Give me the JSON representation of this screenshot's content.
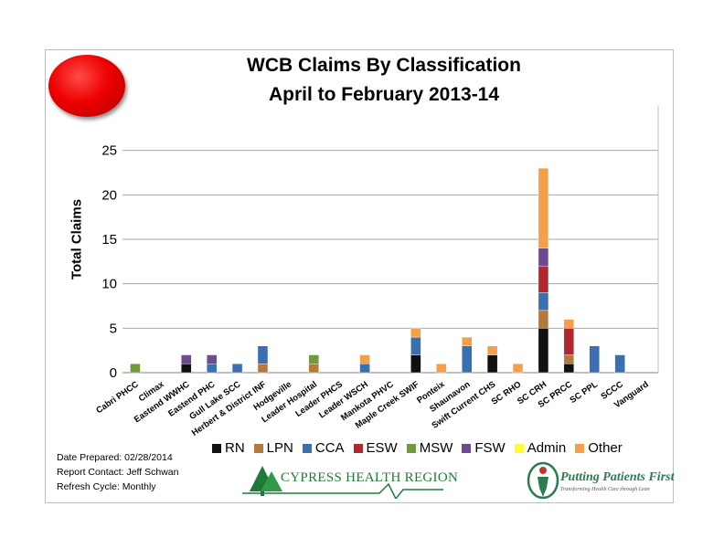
{
  "header": {
    "title_line1": "WCB Claims By Classification",
    "title_line2": "April to February  2013-14"
  },
  "footer": {
    "date_prepared": "Date Prepared:  02/28/2014",
    "report_contact": "Report Contact: Jeff Schwan",
    "refresh_cycle": "Refresh Cycle: Monthly"
  },
  "logos": {
    "left_text": "CYPRESS HEALTH REGION",
    "right_text": "Putting Patients First",
    "right_subtext": "Transforming Health Care through Lean"
  },
  "colors": {
    "RN": "#111111",
    "LPN": "#b57a3a",
    "CCA": "#3a6fb0",
    "ESW": "#b0292e",
    "MSW": "#6f9a3a",
    "FSW": "#6e4a90",
    "Admin": "#ffff33",
    "Other": "#f4a048"
  },
  "chart_data": {
    "type": "bar",
    "stacked": true,
    "title": "WCB Claims By Classification\nApril to February  2013-14",
    "xlabel": "",
    "ylabel": "Total Claims",
    "ylim": [
      0,
      30
    ],
    "yticks": [
      0,
      5,
      10,
      15,
      20,
      25
    ],
    "grid": true,
    "legend_position": "bottom",
    "categories": [
      "Cabri PHCC",
      "Climax",
      "Eastend WWHC",
      "Eastend PHC",
      "Gull Lake SCC",
      "Herbert & District INF",
      "Hodgeville",
      "Leader Hospital",
      "Leader PHCS",
      "Leader WSCH",
      "Mankota PHVC",
      "Maple Creek SWIF",
      "Ponteix",
      "Shaunavon",
      "Swift Current CHS",
      "SC RHO",
      "SC CRH",
      "SC PRCC",
      "SC PPL",
      "SCCC",
      "Vanguard"
    ],
    "series": [
      {
        "name": "RN",
        "values": [
          0,
          0,
          1,
          0,
          0,
          0,
          0,
          0,
          0,
          0,
          0,
          2,
          0,
          0,
          2,
          0,
          5,
          1,
          0,
          0,
          0
        ]
      },
      {
        "name": "LPN",
        "values": [
          0,
          0,
          0,
          0,
          0,
          1,
          0,
          1,
          0,
          0,
          0,
          0,
          0,
          0,
          0,
          0,
          2,
          1,
          0,
          0,
          0
        ]
      },
      {
        "name": "CCA",
        "values": [
          0,
          0,
          0,
          1,
          1,
          2,
          0,
          0,
          0,
          1,
          0,
          2,
          0,
          3,
          0,
          0,
          2,
          0,
          3,
          2,
          0
        ]
      },
      {
        "name": "ESW",
        "values": [
          0,
          0,
          0,
          0,
          0,
          0,
          0,
          0,
          0,
          0,
          0,
          0,
          0,
          0,
          0,
          0,
          3,
          3,
          0,
          0,
          0
        ]
      },
      {
        "name": "MSW",
        "values": [
          1,
          0,
          0,
          0,
          0,
          0,
          0,
          1,
          0,
          0,
          0,
          0,
          0,
          0,
          0,
          0,
          0,
          0,
          0,
          0,
          0
        ]
      },
      {
        "name": "FSW",
        "values": [
          0,
          0,
          1,
          1,
          0,
          0,
          0,
          0,
          0,
          0,
          0,
          0,
          0,
          0,
          0,
          0,
          2,
          0,
          0,
          0,
          0
        ]
      },
      {
        "name": "Admin",
        "values": [
          0,
          0,
          0,
          0,
          0,
          0,
          0,
          0,
          0,
          0,
          0,
          0,
          0,
          0,
          0,
          0,
          0,
          0,
          0,
          0,
          0
        ]
      },
      {
        "name": "Other",
        "values": [
          0,
          0,
          0,
          0,
          0,
          0,
          0,
          0,
          0,
          1,
          0,
          1,
          1,
          1,
          1,
          1,
          9,
          1,
          0,
          0,
          0
        ]
      }
    ]
  }
}
